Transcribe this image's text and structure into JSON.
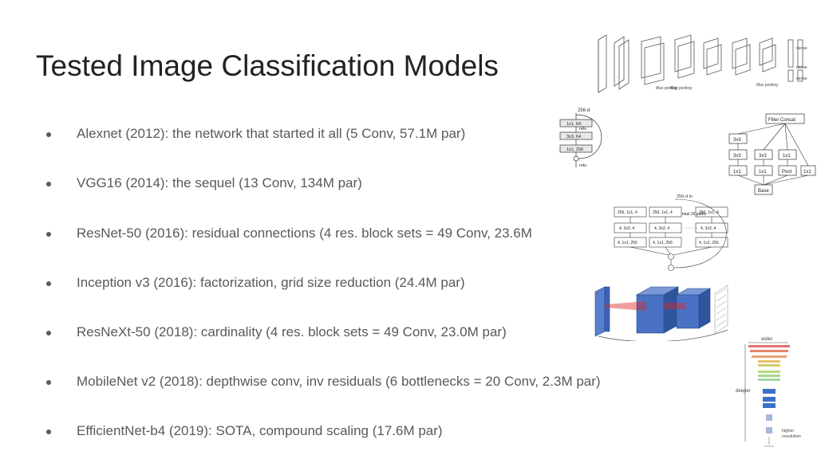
{
  "slide": {
    "title": "Tested Image Classification Models",
    "bullets": [
      "Alexnet (2012): the network that started it all (5 Conv, 57.1M par)",
      "VGG16 (2014): the sequel (13 Conv, 134M par)",
      "ResNet-50 (2016): residual connections (4 res. block sets = 49 Conv, 23.6M",
      "Inception v3 (2016): factorization, grid size reduction (24.4M par)",
      "ResNeXt-50 (2018): cardinality (4 res. block sets = 49 Conv, 23.0M par)",
      "MobileNet v2 (2018): depthwise conv, inv residuals (6 bottlenecks = 20 Conv, 2.3M par)",
      "EfficientNet-b4 (2019): SOTA, compound scaling (17.6M par)"
    ]
  },
  "figures": {
    "alexnet": {
      "labels": [
        "Max pooling",
        "Max pooling",
        "Max pooling",
        "dense",
        "dense",
        "dense"
      ]
    },
    "resnet_block": {
      "input": "256-d",
      "layers": [
        "1x1, 64",
        "3x3, 64",
        "1x1, 256"
      ],
      "relu": "relu"
    },
    "inception": {
      "top": "Filter Concat",
      "row1": [
        "3x3"
      ],
      "row2": [
        "3x3",
        "3x3",
        "1x1"
      ],
      "row3": [
        "1x1",
        "1x1",
        "Pool",
        "1x1"
      ],
      "base": "Base"
    },
    "resnext": {
      "input": "256-d in",
      "col_a": [
        "256, 1x1, 4",
        "4, 3x3, 4",
        "4, 1x1, 256"
      ],
      "col_b": [
        "256, 1x1, 4",
        "4, 3x3, 4",
        "4, 1x1, 256"
      ],
      "col_c": [
        "256, 1x1, 4",
        "4, 3x3, 4",
        "4, 1x1, 256"
      ],
      "paths": "total 32 paths"
    },
    "efficientnet": {
      "wider": "wider",
      "deeper": "deeper",
      "higher": "higher",
      "resolution": "resolution"
    }
  }
}
